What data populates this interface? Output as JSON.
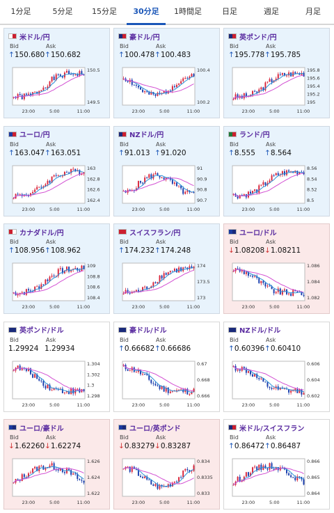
{
  "tabs": [
    {
      "label": "1分足",
      "active": false
    },
    {
      "label": "5分足",
      "active": false
    },
    {
      "label": "15分足",
      "active": false
    },
    {
      "label": "30分足",
      "active": true
    },
    {
      "label": "1時間足",
      "active": false
    },
    {
      "label": "日足",
      "active": false
    },
    {
      "label": "週足",
      "active": false
    },
    {
      "label": "月足",
      "active": false
    }
  ],
  "bid_label": "Bid",
  "ask_label": "Ask",
  "x_ticks": [
    "23:00",
    "5:00",
    "11:00"
  ],
  "colors": {
    "up": "#1a56b8",
    "down": "#d03030",
    "bull_candle": "#d9263c",
    "bear_candle": "#1c3fae",
    "ma_short": "#2a8fd6",
    "ma_long": "#d24fd2",
    "pair": "#5a2ca0"
  },
  "cards": [
    {
      "name": "usdjpy",
      "pair": "米ドル/円",
      "flags": [
        "#ffffff",
        "#cc1f2f"
      ],
      "trend": "up",
      "bid": "150.680",
      "ask": "150.682",
      "dir": "up",
      "chart_data": {
        "type": "line",
        "yticks": [
          "150.5",
          "149.5"
        ],
        "ylim": [
          149.4,
          150.8
        ],
        "seed": 1,
        "shape": "rise"
      }
    },
    {
      "name": "audjpy",
      "pair": "豪ドル/円",
      "flags": [
        "#1a2a7a",
        "#cc1f2f"
      ],
      "trend": "up",
      "bid": "100.478",
      "ask": "100.483",
      "dir": "up",
      "chart_data": {
        "type": "line",
        "yticks": [
          "100.4",
          "100.2"
        ],
        "ylim": [
          100.05,
          100.5
        ],
        "seed": 2,
        "shape": "wave"
      }
    },
    {
      "name": "gbpjpy",
      "pair": "英ポンド/円",
      "flags": [
        "#1a2a7a",
        "#cc1f2f"
      ],
      "trend": "up",
      "bid": "195.778",
      "ask": "195.785",
      "dir": "up",
      "chart_data": {
        "type": "line",
        "yticks": [
          "195.8",
          "195.6",
          "195.4",
          "195.2",
          "195"
        ],
        "ylim": [
          194.95,
          195.9
        ],
        "seed": 3,
        "shape": "rise"
      }
    },
    {
      "name": "eurjpy",
      "pair": "ユーロ/円",
      "flags": [
        "#1a3aa0",
        "#cc1f2f"
      ],
      "trend": "up",
      "bid": "163.047",
      "ask": "163.051",
      "dir": "up",
      "chart_data": {
        "type": "line",
        "yticks": [
          "163",
          "162.8",
          "162.6",
          "162.4"
        ],
        "ylim": [
          162.3,
          163.1
        ],
        "seed": 4,
        "shape": "rise"
      }
    },
    {
      "name": "nzdjpy",
      "pair": "NZドル/円",
      "flags": [
        "#1a2a7a",
        "#cc1f2f"
      ],
      "trend": "up",
      "bid": "91.013",
      "ask": "91.020",
      "dir": "up",
      "chart_data": {
        "type": "line",
        "yticks": [
          "91",
          "90.9",
          "90.8",
          "90.7"
        ],
        "ylim": [
          90.6,
          91.05
        ],
        "seed": 5,
        "shape": "wave"
      }
    },
    {
      "name": "zarjpy",
      "pair": "ランド/円",
      "flags": [
        "#1e7a3a",
        "#cc1f2f"
      ],
      "trend": "up",
      "bid": "8.555",
      "ask": "8.564",
      "dir": "up",
      "chart_data": {
        "type": "line",
        "yticks": [
          "8.56",
          "8.54",
          "8.52",
          "8.5"
        ],
        "ylim": [
          8.49,
          8.57
        ],
        "seed": 6,
        "shape": "rise"
      }
    },
    {
      "name": "cadjpy",
      "pair": "カナダドル/円",
      "flags": [
        "#cc1f2f",
        "#ffffff"
      ],
      "trend": "up",
      "bid": "108.956",
      "ask": "108.962",
      "dir": "up",
      "chart_data": {
        "type": "line",
        "yticks": [
          "109",
          "108.8",
          "108.6",
          "108.4"
        ],
        "ylim": [
          108.3,
          109.05
        ],
        "seed": 7,
        "shape": "rise"
      }
    },
    {
      "name": "chfjpy",
      "pair": "スイスフラン/円",
      "flags": [
        "#cc1f2f",
        "#cc1f2f"
      ],
      "trend": "up",
      "bid": "174.232",
      "ask": "174.248",
      "dir": "up",
      "chart_data": {
        "type": "line",
        "yticks": [
          "174",
          "173.5",
          "173"
        ],
        "ylim": [
          172.9,
          174.3
        ],
        "seed": 8,
        "shape": "rise"
      }
    },
    {
      "name": "eurusd",
      "pair": "ユーロ/ドル",
      "flags": [
        "#1a3aa0",
        "#1a2a7a"
      ],
      "trend": "down",
      "bid": "1.08208",
      "ask": "1.08211",
      "dir": "down",
      "chart_data": {
        "type": "line",
        "yticks": [
          "1.086",
          "1.084",
          "1.082"
        ],
        "ylim": [
          1.0805,
          1.0865
        ],
        "seed": 9,
        "shape": "fall"
      }
    },
    {
      "name": "gbpusd",
      "pair": "英ポンド/ドル",
      "flags": [
        "#1a2a7a",
        "#1a2a7a"
      ],
      "trend": "neutral",
      "bid": "1.29924",
      "ask": "1.29934",
      "dir": "none",
      "chart_data": {
        "type": "line",
        "yticks": [
          "1.304",
          "1.302",
          "1.3",
          "1.298"
        ],
        "ylim": [
          1.2975,
          1.3045
        ],
        "seed": 10,
        "shape": "fall"
      }
    },
    {
      "name": "audusd",
      "pair": "豪ドル/ドル",
      "flags": [
        "#1a2a7a",
        "#1a2a7a"
      ],
      "trend": "neutral",
      "bid": "0.66682",
      "ask": "0.66686",
      "dir": "up",
      "chart_data": {
        "type": "line",
        "yticks": [
          "0.67",
          "0.668",
          "0.666"
        ],
        "ylim": [
          0.6652,
          0.6705
        ],
        "seed": 11,
        "shape": "fall"
      }
    },
    {
      "name": "nzdusd",
      "pair": "NZドル/ドル",
      "flags": [
        "#1a2a7a",
        "#1a2a7a"
      ],
      "trend": "neutral",
      "bid": "0.60396",
      "ask": "0.60410",
      "dir": "up",
      "chart_data": {
        "type": "line",
        "yticks": [
          "0.606",
          "0.604",
          "0.602"
        ],
        "ylim": [
          0.6012,
          0.6068
        ],
        "seed": 12,
        "shape": "fall"
      }
    },
    {
      "name": "euraud",
      "pair": "ユーロ/豪ドル",
      "flags": [
        "#1a3aa0",
        "#1a2a7a"
      ],
      "trend": "down",
      "bid": "1.62260",
      "ask": "1.62274",
      "dir": "down",
      "chart_data": {
        "type": "line",
        "yticks": [
          "1.626",
          "1.624",
          "1.622"
        ],
        "ylim": [
          1.6205,
          1.6268
        ],
        "seed": 13,
        "shape": "hump"
      }
    },
    {
      "name": "eurgbp",
      "pair": "ユーロ/英ポンド",
      "flags": [
        "#1a3aa0",
        "#1a2a7a"
      ],
      "trend": "down",
      "bid": "0.83279",
      "ask": "0.83287",
      "dir": "down",
      "chart_data": {
        "type": "line",
        "yticks": [
          "0.834",
          "0.8335",
          "0.833"
        ],
        "ylim": [
          0.8326,
          0.8342
        ],
        "seed": 14,
        "shape": "wave"
      }
    },
    {
      "name": "usdchf",
      "pair": "米ドル/スイスフラン",
      "flags": [
        "#1a2a7a",
        "#cc1f2f"
      ],
      "trend": "neutral",
      "bid": "0.86472",
      "ask": "0.86487",
      "dir": "up",
      "chart_data": {
        "type": "line",
        "yticks": [
          "0.866",
          "0.865",
          "0.864"
        ],
        "ylim": [
          0.8635,
          0.8665
        ],
        "seed": 15,
        "shape": "hump"
      }
    }
  ]
}
